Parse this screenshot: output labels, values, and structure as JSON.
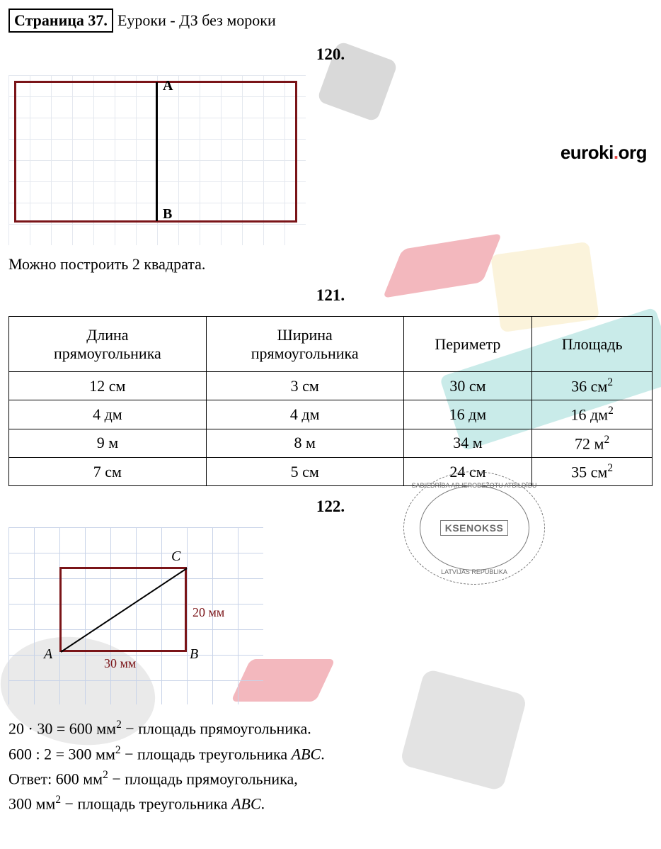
{
  "header": {
    "box": "Страница 37.",
    "rest": "Еуроки - ДЗ без мороки"
  },
  "logo": {
    "text": "euroki",
    "dot": ".",
    "tld": "org"
  },
  "task120": {
    "num": "120.",
    "caption": "Можно построить 2 квадрата.",
    "labelA": "A",
    "labelB": "B",
    "rect_color": "#7a1418",
    "grid_color": "#e4e8ef",
    "rect_w_cells": 13,
    "rect_h_cells": 6.5,
    "split_at_cells": 6.5
  },
  "task121": {
    "num": "121.",
    "columns": [
      "Длина прямоугольника",
      "Ширина прямоугольника",
      "Периметр",
      "Площадь"
    ],
    "rows": [
      [
        "12 см",
        "3 см",
        "30 см",
        "36 см²"
      ],
      [
        "4 дм",
        "4 дм",
        "16 дм",
        "16 дм²"
      ],
      [
        "9 м",
        "8 м",
        "34 м",
        "72 м²"
      ],
      [
        "7 см",
        "5 см",
        "24 см",
        "35 см²"
      ]
    ]
  },
  "task122": {
    "num": "122.",
    "labelA": "A",
    "labelB": "B",
    "labelC": "C",
    "dim_h": "20 мм",
    "dim_w": "30 мм",
    "rect_color": "#7a1418",
    "grid_color": "#c8d3e8",
    "solution": [
      "20 · 30 = 600 мм² − площадь прямоугольника.",
      "600 : 2 = 300 мм² − площадь треугольника ABC.",
      "Ответ: 600 мм² − площадь прямоугольника,",
      "300 мм² − площадь треугольника ABC."
    ]
  },
  "stamp": {
    "name": "KSENOKSS",
    "top": "SABIEDRĪBA AR IEROBEŽOTU ATBILDĪBU",
    "bot": "LATVIJAS REPUBLIKA"
  }
}
